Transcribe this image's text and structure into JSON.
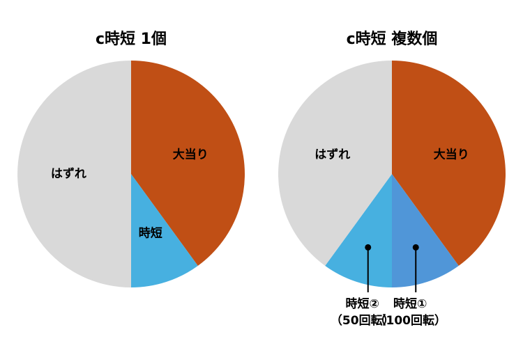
{
  "chart_data": [
    {
      "type": "pie",
      "title": "c時短 1個",
      "categories": [
        "大当り",
        "時短",
        "はずれ"
      ],
      "category_notes": [
        null,
        null,
        null
      ],
      "values": [
        40,
        10,
        50
      ],
      "colors": [
        "#c04f15",
        "#47b0e0",
        "#d9d9d9"
      ]
    },
    {
      "type": "pie",
      "title": "c時短 複数個",
      "categories": [
        "大当り",
        "時短①",
        "時短②",
        "はずれ"
      ],
      "category_notes": [
        null,
        "（100回転）",
        "（50回転）",
        null
      ],
      "values": [
        40,
        10,
        10,
        40
      ],
      "colors": [
        "#c04f15",
        "#5096d8",
        "#47b0e0",
        "#d9d9d9"
      ]
    }
  ]
}
